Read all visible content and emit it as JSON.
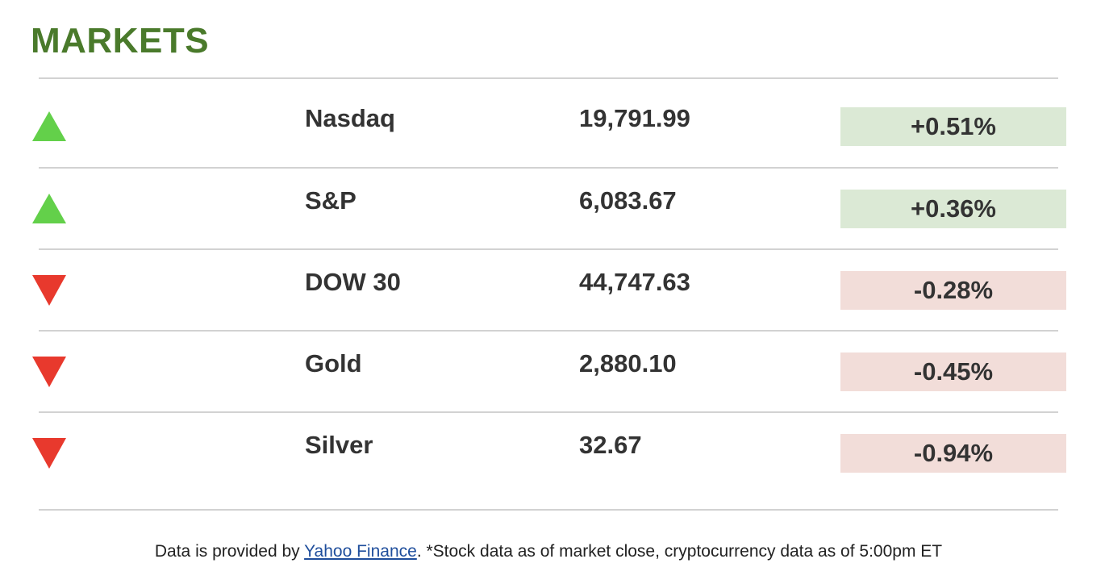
{
  "header": {
    "title": "MARKETS"
  },
  "colors": {
    "title": "#4a7a2b",
    "up_arrow": "#63d04a",
    "down_arrow": "#e8392d",
    "positive_bg": "#dbe9d5",
    "negative_bg": "#f2ddd9",
    "link": "#1f4e9c"
  },
  "markets": [
    {
      "direction": "up",
      "icon": "up-arrow-icon",
      "name": "Nasdaq",
      "value": "19,791.99",
      "change": "+0.51%"
    },
    {
      "direction": "up",
      "icon": "up-arrow-icon",
      "name": "S&P",
      "value": "6,083.67",
      "change": "+0.36%"
    },
    {
      "direction": "down",
      "icon": "down-arrow-icon",
      "name": "DOW 30",
      "value": "44,747.63",
      "change": "-0.28%"
    },
    {
      "direction": "down",
      "icon": "down-arrow-icon",
      "name": "Gold",
      "value": "2,880.10",
      "change": "-0.45%"
    },
    {
      "direction": "down",
      "icon": "down-arrow-icon",
      "name": "Silver",
      "value": "32.67",
      "change": "-0.94%"
    }
  ],
  "footer": {
    "prefix": "Data is provided by ",
    "link_text": "Yahoo Finance",
    "suffix": ". *Stock data as of market close, cryptocurrency data as of 5:00pm ET"
  }
}
